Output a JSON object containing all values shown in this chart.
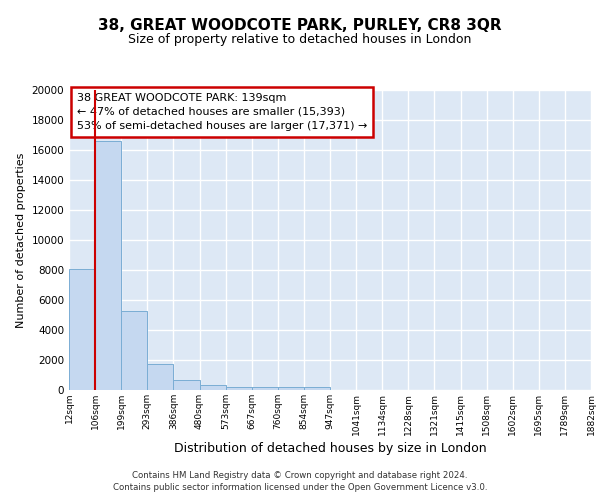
{
  "title": "38, GREAT WOODCOTE PARK, PURLEY, CR8 3QR",
  "subtitle": "Size of property relative to detached houses in London",
  "xlabel": "Distribution of detached houses by size in London",
  "ylabel": "Number of detached properties",
  "bin_labels": [
    "12sqm",
    "106sqm",
    "199sqm",
    "293sqm",
    "386sqm",
    "480sqm",
    "573sqm",
    "667sqm",
    "760sqm",
    "854sqm",
    "947sqm",
    "1041sqm",
    "1134sqm",
    "1228sqm",
    "1321sqm",
    "1415sqm",
    "1508sqm",
    "1602sqm",
    "1695sqm",
    "1789sqm",
    "1882sqm"
  ],
  "bar_heights": [
    8100,
    16600,
    5300,
    1750,
    700,
    320,
    230,
    200,
    190,
    170,
    0,
    0,
    0,
    0,
    0,
    0,
    0,
    0,
    0,
    0
  ],
  "bar_color": "#c5d8f0",
  "bar_edge_color": "#7aadd4",
  "bg_color": "#dde8f5",
  "grid_color": "#ffffff",
  "vline_x": 1,
  "vline_color": "#cc0000",
  "annotation_text": "38 GREAT WOODCOTE PARK: 139sqm\n← 47% of detached houses are smaller (15,393)\n53% of semi-detached houses are larger (17,371) →",
  "annotation_box_color": "#ffffff",
  "annotation_box_edge": "#cc0000",
  "footer": "Contains HM Land Registry data © Crown copyright and database right 2024.\nContains public sector information licensed under the Open Government Licence v3.0.",
  "ylim": [
    0,
    20000
  ],
  "yticks": [
    0,
    2000,
    4000,
    6000,
    8000,
    10000,
    12000,
    14000,
    16000,
    18000,
    20000
  ],
  "title_fontsize": 11,
  "subtitle_fontsize": 9
}
